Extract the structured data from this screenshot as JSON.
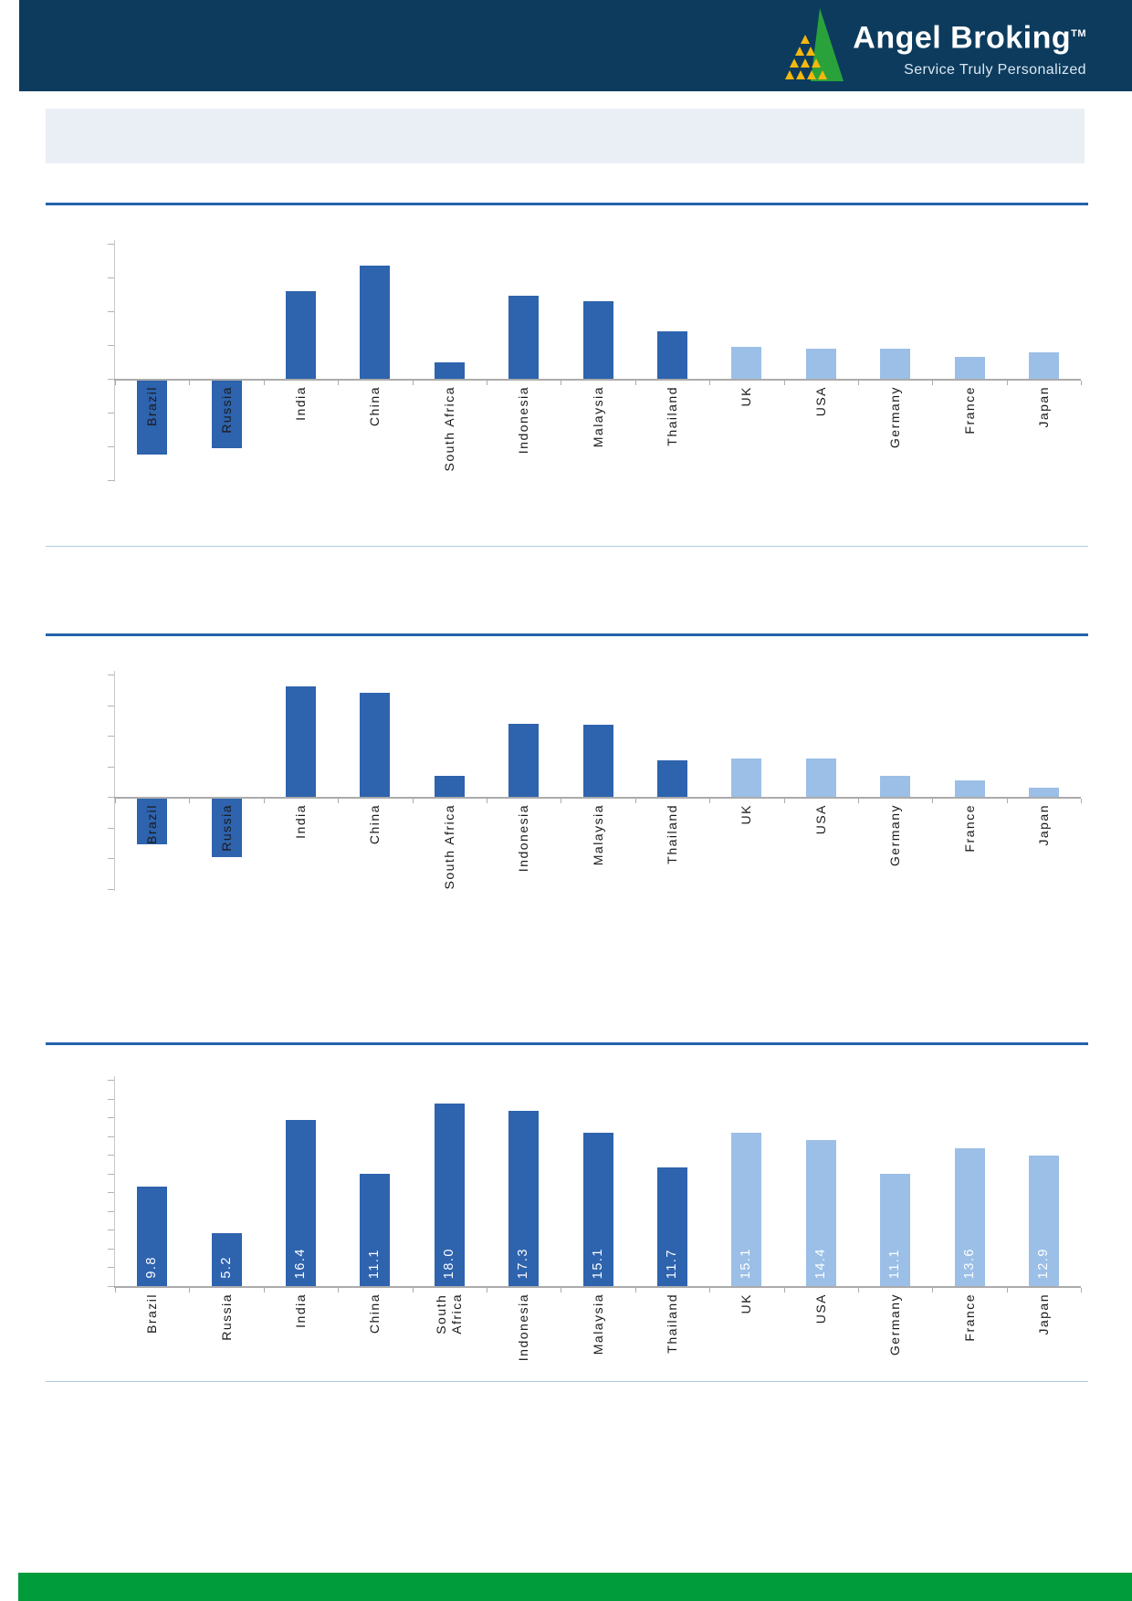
{
  "header": {
    "brand": "Angel Broking",
    "trademark": "TM",
    "tagline": "Service Truly Personalized",
    "colors": {
      "bar_background": "#0C3B5D",
      "logo_green": "#2AA23C",
      "logo_gold": "#F5B80C",
      "text": "#FFFFFF"
    }
  },
  "banner": {
    "text": ""
  },
  "chart_data": [
    {
      "type": "bar",
      "title": "",
      "categories": [
        "Brazil",
        "Russia",
        "India",
        "China",
        "South Africa",
        "Indonesia",
        "Malaysia",
        "Thailand",
        "UK",
        "USA",
        "Germany",
        "France",
        "Japan"
      ],
      "values": [
        -2.2,
        -2.0,
        2.6,
        3.35,
        0.5,
        2.45,
        2.3,
        1.4,
        0.95,
        0.9,
        0.9,
        0.65,
        0.78
      ],
      "value_labels": null,
      "units": "axis-tick units (y-axis tick labels not visible in image)",
      "ylim": [
        -3,
        4
      ],
      "grid": false,
      "legend": "none",
      "dark_bar_count": 8,
      "bar_color_dark": "#2E63AE",
      "bar_color_light": "#9BBFE6"
    },
    {
      "type": "bar",
      "title": "",
      "categories": [
        "Brazil",
        "Russia",
        "India",
        "China",
        "South Africa",
        "Indonesia",
        "Malaysia",
        "Thailand",
        "UK",
        "USA",
        "Germany",
        "France",
        "Japan"
      ],
      "values": [
        -1.5,
        -1.9,
        3.6,
        3.4,
        0.7,
        2.4,
        2.35,
        1.2,
        1.25,
        1.25,
        0.7,
        0.55,
        0.3
      ],
      "value_labels": null,
      "units": "axis-tick units (y-axis tick labels not visible in image)",
      "ylim": [
        -3,
        4
      ],
      "grid": false,
      "legend": "none",
      "dark_bar_count": 8,
      "bar_color_dark": "#2E63AE",
      "bar_color_light": "#9BBFE6"
    },
    {
      "type": "bar",
      "title": "",
      "categories": [
        "Brazil",
        "Russia",
        "India",
        "China",
        "South\nAfrica",
        "Indonesia",
        "Malaysia",
        "Thailand",
        "UK",
        "USA",
        "Germany",
        "France",
        "Japan"
      ],
      "values": [
        9.8,
        5.2,
        16.4,
        11.1,
        18.0,
        17.3,
        15.1,
        11.7,
        15.1,
        14.4,
        11.1,
        13.6,
        12.9
      ],
      "value_labels": [
        "9.8",
        "5.2",
        "16.4",
        "11.1",
        "18.0",
        "17.3",
        "15.1",
        "11.7",
        "15.1",
        "14.4",
        "11.1",
        "13.6",
        "12.9"
      ],
      "units": "as labeled on bars (y-axis tick labels not visible in image)",
      "ylim": [
        0,
        20
      ],
      "grid": false,
      "legend": "none",
      "dark_bar_count": 8,
      "bar_color_dark": "#2E63AE",
      "bar_color_light": "#9BBFE6"
    }
  ],
  "footer": {
    "color": "#009B3A"
  }
}
